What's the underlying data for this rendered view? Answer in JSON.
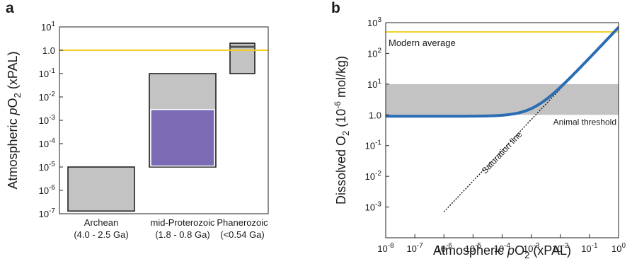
{
  "panels": {
    "a": {
      "letter": "a"
    },
    "b": {
      "letter": "b"
    }
  },
  "chart_data": [
    {
      "panel": "a",
      "type": "bar",
      "y_scale": "log",
      "ylim": [
        1e-07,
        10
      ],
      "ylabel": {
        "pre": "Atmospheric ",
        "italic": "p",
        "main": "O",
        "sub": "2",
        "post": " (xPAL)"
      },
      "y_ticks": [
        {
          "value": 1e-07,
          "base": "10",
          "exp": "-7"
        },
        {
          "value": 1e-06,
          "base": "10",
          "exp": "-6"
        },
        {
          "value": 1e-05,
          "base": "10",
          "exp": "-5"
        },
        {
          "value": 0.0001,
          "base": "10",
          "exp": "-4"
        },
        {
          "value": 0.001,
          "base": "10",
          "exp": "-3"
        },
        {
          "value": 0.01,
          "base": "10",
          "exp": "-2"
        },
        {
          "value": 0.1,
          "base": "10",
          "exp": "-1"
        },
        {
          "value": 1,
          "base": "1.0",
          "exp": ""
        },
        {
          "value": 10,
          "base": "10",
          "exp": "1"
        }
      ],
      "categories": [
        {
          "name": "Archean",
          "range_label": "(4.0 - 2.5 Ga)",
          "low": 1.3e-07,
          "high": 1e-05,
          "inner": null
        },
        {
          "name": "mid-Proterozoic",
          "range_label": "(1.8 - 0.8 Ga)",
          "low": 1e-05,
          "high": 0.1,
          "inner": {
            "low": 1.1e-05,
            "high": 0.0029,
            "color": "#7b6bb5"
          }
        },
        {
          "name": "Phanerozoic",
          "range_label": "(<0.54 Ga)",
          "low": 0.1,
          "high": 2.0,
          "inner": null,
          "marker_line": 1.4
        }
      ],
      "reference_line": {
        "value": 1.0,
        "color": "#f2cf1d"
      },
      "colors": {
        "box": "#c3c3c3",
        "inner": "#7b6bb5",
        "modern": "#f2cf1d"
      }
    },
    {
      "panel": "b",
      "type": "line",
      "x_scale": "log",
      "y_scale": "log",
      "xlim": [
        1e-08,
        1
      ],
      "ylim": [
        0.0001,
        1000
      ],
      "xlabel": {
        "pre": "Atmospheric ",
        "italic": "p",
        "main": "O",
        "sub": "2",
        "post": " (xPAL)"
      },
      "ylabel": {
        "pre": "Dissolved O",
        "sub": "2",
        "post": " (10",
        "sup": "-6",
        "tail": " mol/kg)"
      },
      "x_ticks": [
        {
          "value": 1e-08,
          "base": "10",
          "exp": "-8"
        },
        {
          "value": 1e-07,
          "base": "10",
          "exp": "-7"
        },
        {
          "value": 1e-06,
          "base": "10",
          "exp": "-6"
        },
        {
          "value": 1e-05,
          "base": "10",
          "exp": "-5"
        },
        {
          "value": 0.0001,
          "base": "10",
          "exp": "-4"
        },
        {
          "value": 0.001,
          "base": "10",
          "exp": "-3"
        },
        {
          "value": 0.01,
          "base": "10",
          "exp": "-2"
        },
        {
          "value": 0.1,
          "base": "10",
          "exp": "-1"
        },
        {
          "value": 1,
          "base": "10",
          "exp": "0"
        }
      ],
      "y_ticks": [
        {
          "value": 0.001,
          "base": "10",
          "exp": "-3"
        },
        {
          "value": 0.01,
          "base": "10",
          "exp": "-2"
        },
        {
          "value": 0.1,
          "base": "10",
          "exp": "-1"
        },
        {
          "value": 1,
          "base": "1.0",
          "exp": ""
        },
        {
          "value": 10,
          "base": "10",
          "exp": "1"
        },
        {
          "value": 100,
          "base": "10",
          "exp": "2"
        },
        {
          "value": 1000,
          "base": "10",
          "exp": "3"
        }
      ],
      "threshold_band": {
        "low": 1.0,
        "high": 10.0,
        "label": "Animal threshold",
        "color": "#c3c3c3"
      },
      "modern_average": {
        "value": 500,
        "label": "Modern average",
        "color": "#f2cf1d"
      },
      "saturation_line": {
        "label": "Saturation line",
        "y_at_pal": 700
      },
      "series": [
        {
          "color": "#2a6db3",
          "baseline": 0.9,
          "sat_coefficient": 700,
          "x": [
            1e-08,
            1e-06,
            0.0001,
            0.001,
            0.003,
            0.01,
            0.03,
            0.1,
            1
          ],
          "y": [
            0.9,
            0.9,
            0.97,
            1.6,
            3.0,
            7.9,
            21.9,
            70.9,
            700.9
          ]
        }
      ]
    }
  ]
}
